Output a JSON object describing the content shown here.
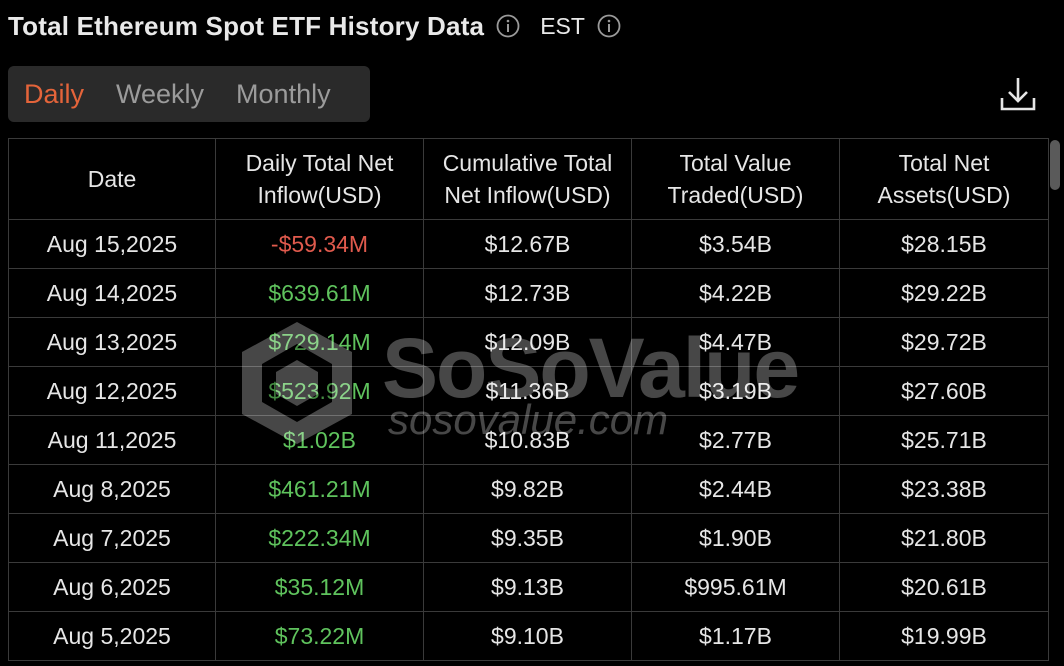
{
  "header": {
    "title": "Total Ethereum Spot ETF History Data",
    "timezone": "EST"
  },
  "tabs": [
    {
      "label": "Daily",
      "active": true
    },
    {
      "label": "Weekly",
      "active": false
    },
    {
      "label": "Monthly",
      "active": false
    }
  ],
  "table": {
    "columns": [
      "Date",
      "Daily Total Net Inflow(USD)",
      "Cumulative Total Net Inflow(USD)",
      "Total Value Traded(USD)",
      "Total Net Assets(USD)"
    ],
    "rows": [
      {
        "date": "Aug 15,2025",
        "daily_net_inflow": "-$59.34M",
        "cumulative": "$12.67B",
        "traded": "$3.54B",
        "net_assets": "$28.15B"
      },
      {
        "date": "Aug 14,2025",
        "daily_net_inflow": "$639.61M",
        "cumulative": "$12.73B",
        "traded": "$4.22B",
        "net_assets": "$29.22B"
      },
      {
        "date": "Aug 13,2025",
        "daily_net_inflow": "$729.14M",
        "cumulative": "$12.09B",
        "traded": "$4.47B",
        "net_assets": "$29.72B"
      },
      {
        "date": "Aug 12,2025",
        "daily_net_inflow": "$523.92M",
        "cumulative": "$11.36B",
        "traded": "$3.19B",
        "net_assets": "$27.60B"
      },
      {
        "date": "Aug 11,2025",
        "daily_net_inflow": "$1.02B",
        "cumulative": "$10.83B",
        "traded": "$2.77B",
        "net_assets": "$25.71B"
      },
      {
        "date": "Aug 8,2025",
        "daily_net_inflow": "$461.21M",
        "cumulative": "$9.82B",
        "traded": "$2.44B",
        "net_assets": "$23.38B"
      },
      {
        "date": "Aug 7,2025",
        "daily_net_inflow": "$222.34M",
        "cumulative": "$9.35B",
        "traded": "$1.90B",
        "net_assets": "$21.80B"
      },
      {
        "date": "Aug 6,2025",
        "daily_net_inflow": "$35.12M",
        "cumulative": "$9.13B",
        "traded": "$995.61M",
        "net_assets": "$20.61B"
      },
      {
        "date": "Aug 5,2025",
        "daily_net_inflow": "$73.22M",
        "cumulative": "$9.10B",
        "traded": "$1.17B",
        "net_assets": "$19.99B"
      }
    ]
  },
  "watermark": {
    "name": "SoSoValue",
    "url": "sosovalue.com"
  },
  "colors": {
    "accent": "#e4643a",
    "positive": "#5fc35d",
    "negative": "#e05a4d",
    "background": "#000000",
    "border": "#3a3a3a"
  },
  "icons": {
    "title_info": "info-icon",
    "timezone_info": "info-icon",
    "download": "download-icon",
    "watermark_logo": "sosovalue-logo"
  }
}
